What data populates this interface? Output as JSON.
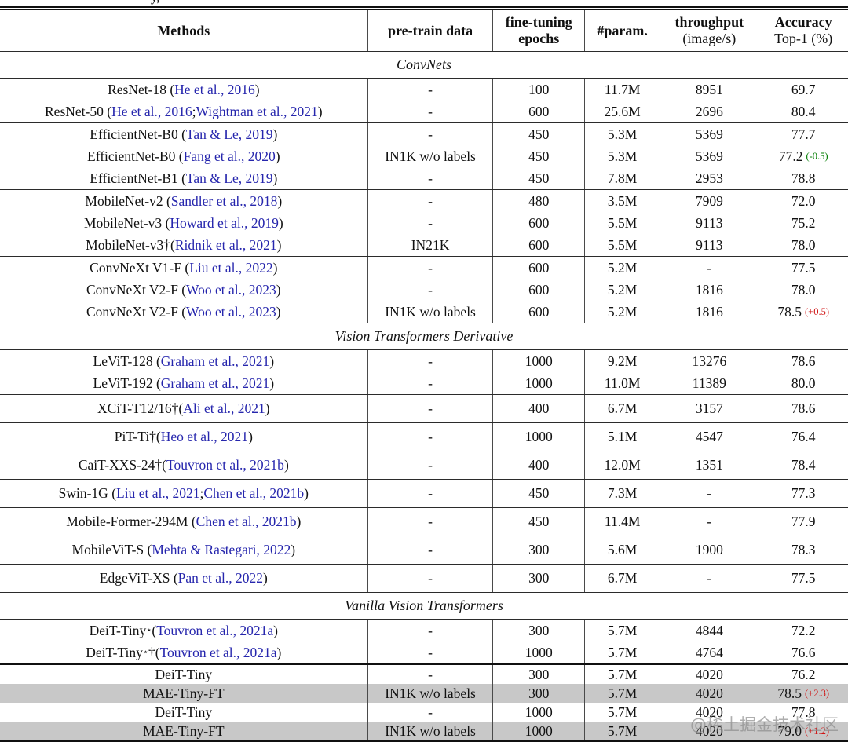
{
  "caption_fragment": "y,",
  "colors": {
    "citation_link": "#2626ad",
    "delta_negative": "#007d00",
    "delta_positive": "#d01616",
    "row_highlight": "#c8c8c8"
  },
  "watermark": "@稀土掘金技术社区",
  "table": {
    "header": {
      "methods": "Methods",
      "pretrain": "pre-train data",
      "epochs_l1": "fine-tuning",
      "epochs_l2": "epochs",
      "param": "#param.",
      "throughput_l1": "throughput",
      "throughput_l2": "(image/s)",
      "accuracy_l1": "Accuracy",
      "accuracy_l2": "Top-1 (%)"
    },
    "sections": [
      {
        "title": "ConvNets",
        "groups": [
          {
            "rows": [
              {
                "method": [
                  [
                    "ResNet-18 (",
                    "p"
                  ],
                  [
                    "He et al., 2016",
                    "c"
                  ],
                  [
                    ")",
                    "p"
                  ]
                ],
                "pretrain": "-",
                "epochs": "100",
                "param": "11.7M",
                "throughput": "8951",
                "acc": "69.7"
              },
              {
                "method": [
                  [
                    "ResNet-50 (",
                    "p"
                  ],
                  [
                    "He et al., 2016",
                    "c"
                  ],
                  [
                    "; ",
                    "p"
                  ],
                  [
                    "Wightman et al., 2021",
                    "c"
                  ],
                  [
                    ")",
                    "p"
                  ]
                ],
                "pretrain": "-",
                "epochs": "600",
                "param": "25.6M",
                "throughput": "2696",
                "acc": "80.4"
              }
            ]
          },
          {
            "rows": [
              {
                "method": [
                  [
                    "EfficientNet-B0 (",
                    "p"
                  ],
                  [
                    "Tan & Le, 2019",
                    "c"
                  ],
                  [
                    ")",
                    "p"
                  ]
                ],
                "pretrain": "-",
                "epochs": "450",
                "param": "5.3M",
                "throughput": "5369",
                "acc": "77.7"
              },
              {
                "method": [
                  [
                    "EfficientNet-B0 (",
                    "p"
                  ],
                  [
                    "Fang et al., 2020",
                    "c"
                  ],
                  [
                    ")",
                    "p"
                  ]
                ],
                "pretrain": "IN1K w/o labels",
                "epochs": "450",
                "param": "5.3M",
                "throughput": "5369",
                "acc": "77.2",
                "delta": "(-0.5)",
                "delta_sign": "neg"
              },
              {
                "method": [
                  [
                    "EfficientNet-B1 (",
                    "p"
                  ],
                  [
                    "Tan & Le, 2019",
                    "c"
                  ],
                  [
                    ")",
                    "p"
                  ]
                ],
                "pretrain": "-",
                "epochs": "450",
                "param": "7.8M",
                "throughput": "2953",
                "acc": "78.8"
              }
            ]
          },
          {
            "rows": [
              {
                "method": [
                  [
                    "MobileNet-v2 (",
                    "p"
                  ],
                  [
                    "Sandler et al., 2018",
                    "c"
                  ],
                  [
                    ")",
                    "p"
                  ]
                ],
                "pretrain": "-",
                "epochs": "480",
                "param": "3.5M",
                "throughput": "7909",
                "acc": "72.0"
              },
              {
                "method": [
                  [
                    "MobileNet-v3 (",
                    "p"
                  ],
                  [
                    "Howard et al., 2019",
                    "c"
                  ],
                  [
                    ")",
                    "p"
                  ]
                ],
                "pretrain": "-",
                "epochs": "600",
                "param": "5.5M",
                "throughput": "9113",
                "acc": "75.2"
              },
              {
                "method": [
                  [
                    "MobileNet-v3†(",
                    "p"
                  ],
                  [
                    "Ridnik et al., 2021",
                    "c"
                  ],
                  [
                    ")",
                    "p"
                  ]
                ],
                "pretrain": "IN21K",
                "epochs": "600",
                "param": "5.5M",
                "throughput": "9113",
                "acc": "78.0"
              }
            ]
          },
          {
            "rows": [
              {
                "method": [
                  [
                    "ConvNeXt V1-F (",
                    "p"
                  ],
                  [
                    "Liu et al., 2022",
                    "c"
                  ],
                  [
                    ")",
                    "p"
                  ]
                ],
                "pretrain": "-",
                "epochs": "600",
                "param": "5.2M",
                "throughput": "-",
                "acc": "77.5"
              },
              {
                "method": [
                  [
                    "ConvNeXt V2-F (",
                    "p"
                  ],
                  [
                    "Woo et al., 2023",
                    "c"
                  ],
                  [
                    ")",
                    "p"
                  ]
                ],
                "pretrain": "-",
                "epochs": "600",
                "param": "5.2M",
                "throughput": "1816",
                "acc": "78.0"
              },
              {
                "method": [
                  [
                    "ConvNeXt V2-F (",
                    "p"
                  ],
                  [
                    "Woo et al., 2023",
                    "c"
                  ],
                  [
                    ")",
                    "p"
                  ]
                ],
                "pretrain": "IN1K w/o labels",
                "epochs": "600",
                "param": "5.2M",
                "throughput": "1816",
                "acc": "78.5",
                "delta": "(+0.5)",
                "delta_sign": "pos"
              }
            ]
          }
        ]
      },
      {
        "title": "Vision Transformers Derivative",
        "groups": [
          {
            "rows": [
              {
                "method": [
                  [
                    "LeViT-128 (",
                    "p"
                  ],
                  [
                    "Graham et al., 2021",
                    "c"
                  ],
                  [
                    ")",
                    "p"
                  ]
                ],
                "pretrain": "-",
                "epochs": "1000",
                "param": "9.2M",
                "throughput": "13276",
                "acc": "78.6"
              },
              {
                "method": [
                  [
                    "LeViT-192 (",
                    "p"
                  ],
                  [
                    "Graham et al., 2021",
                    "c"
                  ],
                  [
                    ")",
                    "p"
                  ]
                ],
                "pretrain": "-",
                "epochs": "1000",
                "param": "11.0M",
                "throughput": "11389",
                "acc": "80.0"
              }
            ]
          },
          {
            "rows": [
              {
                "method": [
                  [
                    "XCiT-T12/16†(",
                    "p"
                  ],
                  [
                    "Ali et al., 2021",
                    "c"
                  ],
                  [
                    ")",
                    "p"
                  ]
                ],
                "pretrain": "-",
                "epochs": "400",
                "param": "6.7M",
                "throughput": "3157",
                "acc": "78.6"
              }
            ]
          },
          {
            "rows": [
              {
                "method": [
                  [
                    "PiT-Ti†(",
                    "p"
                  ],
                  [
                    "Heo et al., 2021",
                    "c"
                  ],
                  [
                    ")",
                    "p"
                  ]
                ],
                "pretrain": "-",
                "epochs": "1000",
                "param": "5.1M",
                "throughput": "4547",
                "acc": "76.4"
              }
            ]
          },
          {
            "rows": [
              {
                "method": [
                  [
                    "CaiT-XXS-24†(",
                    "p"
                  ],
                  [
                    "Touvron et al., 2021b",
                    "c"
                  ],
                  [
                    ")",
                    "p"
                  ]
                ],
                "pretrain": "-",
                "epochs": "400",
                "param": "12.0M",
                "throughput": "1351",
                "acc": "78.4"
              }
            ]
          },
          {
            "rows": [
              {
                "method": [
                  [
                    "Swin-1G (",
                    "p"
                  ],
                  [
                    "Liu et al., 2021",
                    "c"
                  ],
                  [
                    "; ",
                    "p"
                  ],
                  [
                    "Chen et al., 2021b",
                    "c"
                  ],
                  [
                    ")",
                    "p"
                  ]
                ],
                "pretrain": "-",
                "epochs": "450",
                "param": "7.3M",
                "throughput": "-",
                "acc": "77.3"
              }
            ]
          },
          {
            "rows": [
              {
                "method": [
                  [
                    "Mobile-Former-294M (",
                    "p"
                  ],
                  [
                    "Chen et al., 2021b",
                    "c"
                  ],
                  [
                    ")",
                    "p"
                  ]
                ],
                "pretrain": "-",
                "epochs": "450",
                "param": "11.4M",
                "throughput": "-",
                "acc": "77.9"
              }
            ]
          },
          {
            "rows": [
              {
                "method": [
                  [
                    "MobileViT-S (",
                    "p"
                  ],
                  [
                    "Mehta & Rastegari, 2022",
                    "c"
                  ],
                  [
                    ")",
                    "p"
                  ]
                ],
                "pretrain": "-",
                "epochs": "300",
                "param": "5.6M",
                "throughput": "1900",
                "acc": "78.3"
              }
            ]
          },
          {
            "rows": [
              {
                "method": [
                  [
                    "EdgeViT-XS (",
                    "p"
                  ],
                  [
                    "Pan et al., 2022",
                    "c"
                  ],
                  [
                    ")",
                    "p"
                  ]
                ],
                "pretrain": "-",
                "epochs": "300",
                "param": "6.7M",
                "throughput": "-",
                "acc": "77.5"
              }
            ]
          }
        ]
      },
      {
        "title": "Vanilla Vision Transformers",
        "groups": [
          {
            "rows": [
              {
                "method": [
                  [
                    "DeiT-Tiny",
                    "p"
                  ],
                  [
                    "⋆",
                    "u"
                  ],
                  [
                    " (",
                    "p"
                  ],
                  [
                    "Touvron et al., 2021a",
                    "c"
                  ],
                  [
                    ")",
                    "p"
                  ]
                ],
                "pretrain": "-",
                "epochs": "300",
                "param": "5.7M",
                "throughput": "4844",
                "acc": "72.2"
              },
              {
                "method": [
                  [
                    "DeiT-Tiny",
                    "p"
                  ],
                  [
                    "⋆",
                    "u"
                  ],
                  [
                    "†(",
                    "p"
                  ],
                  [
                    "Touvron et al., 2021a",
                    "c"
                  ],
                  [
                    ")",
                    "p"
                  ]
                ],
                "pretrain": "-",
                "epochs": "1000",
                "param": "5.7M",
                "throughput": "4764",
                "acc": "76.6"
              }
            ]
          },
          {
            "thick_top": true,
            "compact": true,
            "rows": [
              {
                "method": [
                  [
                    "DeiT-Tiny",
                    "p"
                  ]
                ],
                "pretrain": "-",
                "epochs": "300",
                "param": "5.7M",
                "throughput": "4020",
                "acc": "76.2"
              },
              {
                "method": [
                  [
                    "MAE-Tiny-FT",
                    "p"
                  ]
                ],
                "pretrain": "IN1K w/o labels",
                "epochs": "300",
                "param": "5.7M",
                "throughput": "4020",
                "acc": "78.5",
                "delta": "(+2.3)",
                "delta_sign": "pos",
                "hl": true
              },
              {
                "method": [
                  [
                    "DeiT-Tiny",
                    "p"
                  ]
                ],
                "pretrain": "-",
                "epochs": "1000",
                "param": "5.7M",
                "throughput": "4020",
                "acc": "77.8"
              },
              {
                "method": [
                  [
                    "MAE-Tiny-FT",
                    "p"
                  ]
                ],
                "pretrain": "IN1K w/o labels",
                "epochs": "1000",
                "param": "5.7M",
                "throughput": "4020",
                "acc": "79.0",
                "delta": "(+1.2)",
                "delta_sign": "pos",
                "hl": true
              }
            ]
          }
        ]
      }
    ]
  }
}
